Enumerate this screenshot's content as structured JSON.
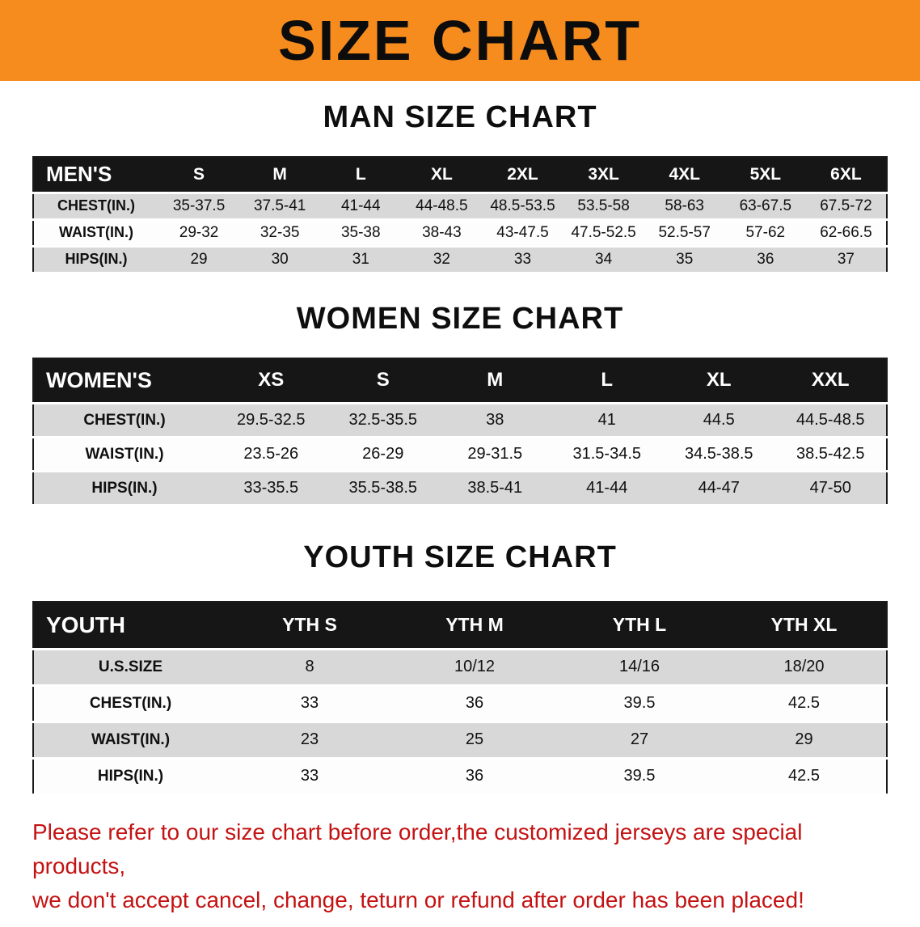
{
  "banner": {
    "title": "SIZE CHART"
  },
  "colors": {
    "banner_bg": "#f68b1e",
    "table_header_bg": "#161616",
    "alt_row_bg": "#d8d8d8",
    "disclaimer_text": "#c41212"
  },
  "sections": {
    "men": {
      "heading": "MAN SIZE CHART",
      "table": {
        "corner_label": "MEN'S",
        "columns": [
          "S",
          "M",
          "L",
          "XL",
          "2XL",
          "3XL",
          "4XL",
          "5XL",
          "6XL"
        ],
        "rows": [
          {
            "label": "CHEST(IN.)",
            "values": [
              "35-37.5",
              "37.5-41",
              "41-44",
              "44-48.5",
              "48.5-53.5",
              "53.5-58",
              "58-63",
              "63-67.5",
              "67.5-72"
            ]
          },
          {
            "label": "WAIST(IN.)",
            "values": [
              "29-32",
              "32-35",
              "35-38",
              "38-43",
              "43-47.5",
              "47.5-52.5",
              "52.5-57",
              "57-62",
              "62-66.5"
            ]
          },
          {
            "label": "HIPS(IN.)",
            "values": [
              "29",
              "30",
              "31",
              "32",
              "33",
              "34",
              "35",
              "36",
              "37"
            ]
          }
        ]
      }
    },
    "women": {
      "heading": "WOMEN SIZE CHART",
      "table": {
        "corner_label": "WOMEN'S",
        "columns": [
          "XS",
          "S",
          "M",
          "L",
          "XL",
          "XXL"
        ],
        "rows": [
          {
            "label": "CHEST(IN.)",
            "values": [
              "29.5-32.5",
              "32.5-35.5",
              "38",
              "41",
              "44.5",
              "44.5-48.5"
            ]
          },
          {
            "label": "WAIST(IN.)",
            "values": [
              "23.5-26",
              "26-29",
              "29-31.5",
              "31.5-34.5",
              "34.5-38.5",
              "38.5-42.5"
            ]
          },
          {
            "label": "HIPS(IN.)",
            "values": [
              "33-35.5",
              "35.5-38.5",
              "38.5-41",
              "41-44",
              "44-47",
              "47-50"
            ]
          }
        ]
      }
    },
    "youth": {
      "heading": "YOUTH SIZE CHART",
      "table": {
        "corner_label": "YOUTH",
        "columns": [
          "YTH S",
          "YTH M",
          "YTH L",
          "YTH XL"
        ],
        "rows": [
          {
            "label": "U.S.SIZE",
            "values": [
              "8",
              "10/12",
              "14/16",
              "18/20"
            ]
          },
          {
            "label": "CHEST(IN.)",
            "values": [
              "33",
              "36",
              "39.5",
              "42.5"
            ]
          },
          {
            "label": "WAIST(IN.)",
            "values": [
              "23",
              "25",
              "27",
              "29"
            ]
          },
          {
            "label": "HIPS(IN.)",
            "values": [
              "33",
              "36",
              "39.5",
              "42.5"
            ]
          }
        ]
      }
    }
  },
  "disclaimer": {
    "line1": "Please refer to our size chart before order,the customized jerseys are special products,",
    "line2": "we don't accept cancel, change, teturn or refund after order has been placed!"
  }
}
